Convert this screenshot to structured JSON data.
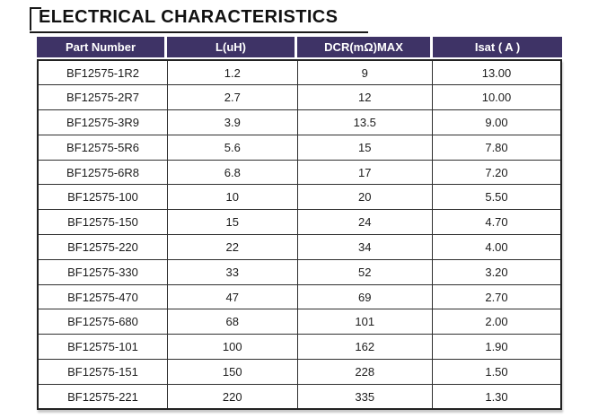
{
  "header": {
    "title": "ELECTRICAL CHARACTERISTICS"
  },
  "colors": {
    "header_bg": "#3e3366",
    "header_text": "#ffffff",
    "border": "#2f2f2f",
    "title_text": "#111111"
  },
  "table": {
    "columns": [
      "Part Number",
      "L(uH)",
      "DCR(mΩ)MAX",
      "Isat ( A )"
    ],
    "rows": [
      [
        "BF12575-1R2",
        "1.2",
        "9",
        "13.00"
      ],
      [
        "BF12575-2R7",
        "2.7",
        "12",
        "10.00"
      ],
      [
        "BF12575-3R9",
        "3.9",
        "13.5",
        "9.00"
      ],
      [
        "BF12575-5R6",
        "5.6",
        "15",
        "7.80"
      ],
      [
        "BF12575-6R8",
        "6.8",
        "17",
        "7.20"
      ],
      [
        "BF12575-100",
        "10",
        "20",
        "5.50"
      ],
      [
        "BF12575-150",
        "15",
        "24",
        "4.70"
      ],
      [
        "BF12575-220",
        "22",
        "34",
        "4.00"
      ],
      [
        "BF12575-330",
        "33",
        "52",
        "3.20"
      ],
      [
        "BF12575-470",
        "47",
        "69",
        "2.70"
      ],
      [
        "BF12575-680",
        "68",
        "101",
        "2.00"
      ],
      [
        "BF12575-101",
        "100",
        "162",
        "1.90"
      ],
      [
        "BF12575-151",
        "150",
        "228",
        "1.50"
      ],
      [
        "BF12575-221",
        "220",
        "335",
        "1.30"
      ]
    ],
    "column_keys": [
      "part-number",
      "l-uh",
      "dcr-mohm-max",
      "isat-a"
    ]
  }
}
